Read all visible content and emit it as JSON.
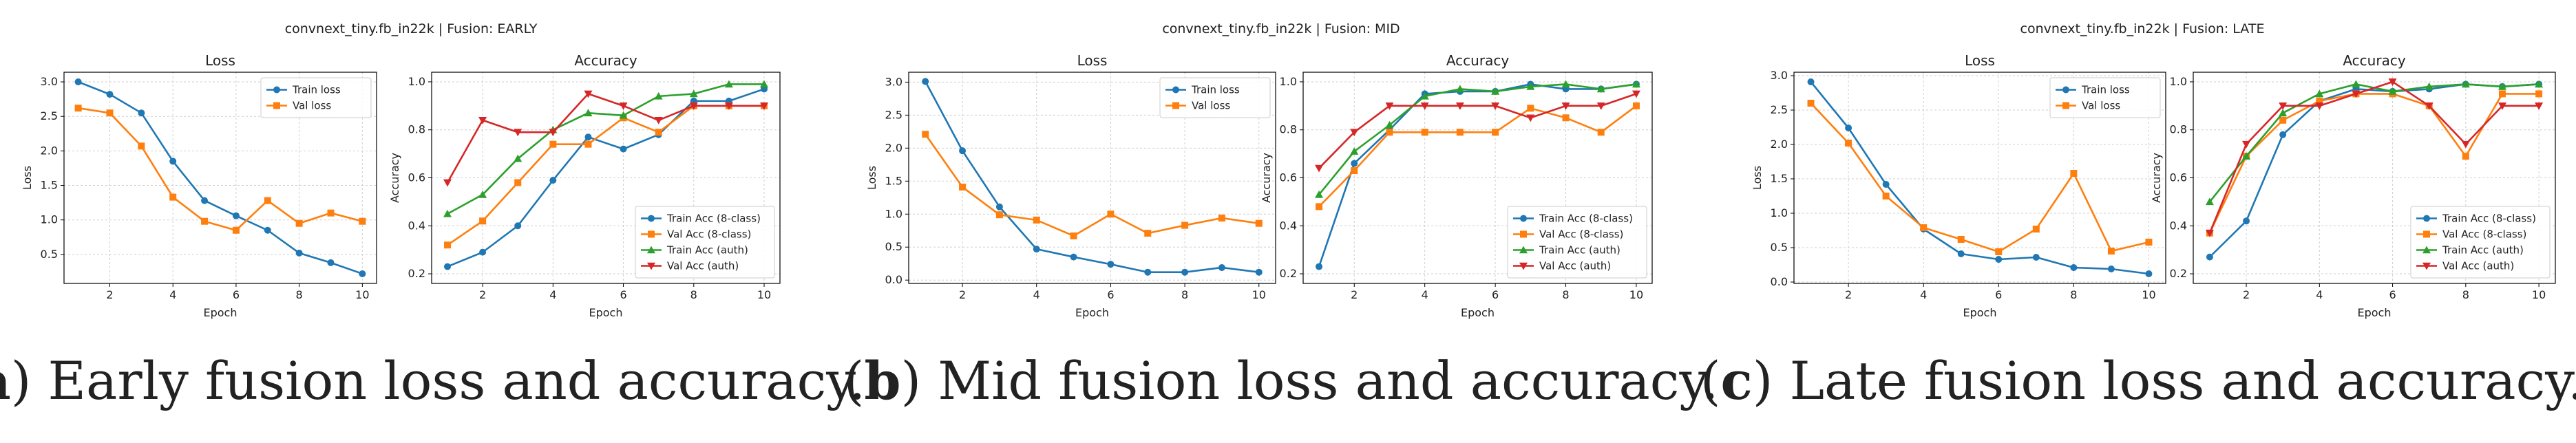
{
  "colors": {
    "blue": "#1f77b4",
    "orange": "#ff7f0e",
    "green": "#2ca02c",
    "red": "#d62728"
  },
  "panels": [
    {
      "title": "convnext_tiny.fb_in22k | Fusion: EARLY",
      "caption_label": "(a)",
      "caption_bold": "a",
      "caption_text": " Early fusion loss and accuracy."
    },
    {
      "title": "convnext_tiny.fb_in22k | Fusion: MID",
      "caption_label": "(b)",
      "caption_bold": "b",
      "caption_text": " Mid fusion loss and accuracy."
    },
    {
      "title": "convnext_tiny.fb_in22k | Fusion: LATE",
      "caption_label": "(c)",
      "caption_bold": "c",
      "caption_text": " Late fusion loss and accuracy."
    }
  ],
  "chart_data": [
    {
      "type": "line",
      "panel": 0,
      "title": "Loss",
      "xlabel": "Epoch",
      "ylabel": "Loss",
      "x": [
        1,
        2,
        3,
        4,
        5,
        6,
        7,
        8,
        9,
        10
      ],
      "xlim": [
        0.55,
        10.45
      ],
      "ylim": [
        0.08,
        3.14
      ],
      "xticks": [
        2,
        4,
        6,
        8,
        10
      ],
      "yticks": [
        0.5,
        1.0,
        1.5,
        2.0,
        2.5,
        3.0
      ],
      "ytick_fmt": 1,
      "legend": "upper right",
      "grid": true,
      "series": [
        {
          "name": "Train loss",
          "color": "blue",
          "marker": "circle",
          "values": [
            3.0,
            2.82,
            2.55,
            1.85,
            1.28,
            1.06,
            0.85,
            0.52,
            0.38,
            0.22
          ]
        },
        {
          "name": "Val loss",
          "color": "orange",
          "marker": "square",
          "values": [
            2.62,
            2.55,
            2.07,
            1.33,
            0.98,
            0.85,
            1.28,
            0.95,
            1.1,
            0.98
          ]
        }
      ]
    },
    {
      "type": "line",
      "panel": 0,
      "title": "Accuracy",
      "xlabel": "Epoch",
      "ylabel": "Accuracy",
      "x": [
        1,
        2,
        3,
        4,
        5,
        6,
        7,
        8,
        9,
        10
      ],
      "xlim": [
        0.55,
        10.45
      ],
      "ylim": [
        0.16,
        1.04
      ],
      "xticks": [
        2,
        4,
        6,
        8,
        10
      ],
      "yticks": [
        0.2,
        0.4,
        0.6,
        0.8,
        1.0
      ],
      "ytick_fmt": 1,
      "legend": "lower right",
      "grid": true,
      "series": [
        {
          "name": "Train Acc (8-class)",
          "color": "blue",
          "marker": "circle",
          "values": [
            0.23,
            0.29,
            0.4,
            0.59,
            0.77,
            0.72,
            0.78,
            0.92,
            0.92,
            0.97
          ]
        },
        {
          "name": "Val Acc (8-class)",
          "color": "orange",
          "marker": "square",
          "values": [
            0.32,
            0.42,
            0.58,
            0.74,
            0.74,
            0.85,
            0.79,
            0.9,
            0.9,
            0.9
          ]
        },
        {
          "name": "Train Acc (auth)",
          "color": "green",
          "marker": "triangle-up",
          "values": [
            0.45,
            0.53,
            0.68,
            0.8,
            0.87,
            0.86,
            0.94,
            0.95,
            0.99,
            0.99
          ]
        },
        {
          "name": "Val Acc (auth)",
          "color": "red",
          "marker": "triangle-down",
          "values": [
            0.58,
            0.84,
            0.79,
            0.79,
            0.95,
            0.9,
            0.84,
            0.9,
            0.9,
            0.9
          ]
        }
      ]
    },
    {
      "type": "line",
      "panel": 1,
      "title": "Loss",
      "xlabel": "Epoch",
      "ylabel": "Loss",
      "x": [
        1,
        2,
        3,
        4,
        5,
        6,
        7,
        8,
        9,
        10
      ],
      "xlim": [
        0.55,
        10.45
      ],
      "ylim": [
        -0.05,
        3.15
      ],
      "xticks": [
        2,
        4,
        6,
        8,
        10
      ],
      "yticks": [
        0.0,
        0.5,
        1.0,
        1.5,
        2.0,
        2.5,
        3.0
      ],
      "ytick_fmt": 1,
      "legend": "upper right",
      "grid": true,
      "series": [
        {
          "name": "Train loss",
          "color": "blue",
          "marker": "circle",
          "values": [
            3.01,
            1.96,
            1.11,
            0.47,
            0.35,
            0.24,
            0.12,
            0.12,
            0.19,
            0.12
          ]
        },
        {
          "name": "Val loss",
          "color": "orange",
          "marker": "square",
          "values": [
            2.21,
            1.41,
            0.99,
            0.91,
            0.67,
            1.0,
            0.71,
            0.83,
            0.94,
            0.86
          ]
        }
      ]
    },
    {
      "type": "line",
      "panel": 1,
      "title": "Accuracy",
      "xlabel": "Epoch",
      "ylabel": "Accuracy",
      "x": [
        1,
        2,
        3,
        4,
        5,
        6,
        7,
        8,
        9,
        10
      ],
      "xlim": [
        0.55,
        10.45
      ],
      "ylim": [
        0.16,
        1.04
      ],
      "xticks": [
        2,
        4,
        6,
        8,
        10
      ],
      "yticks": [
        0.2,
        0.4,
        0.6,
        0.8,
        1.0
      ],
      "ytick_fmt": 1,
      "legend": "lower right",
      "grid": true,
      "series": [
        {
          "name": "Train Acc (8-class)",
          "color": "blue",
          "marker": "circle",
          "values": [
            0.23,
            0.66,
            0.8,
            0.95,
            0.96,
            0.96,
            0.99,
            0.97,
            0.97,
            0.99
          ]
        },
        {
          "name": "Val Acc (8-class)",
          "color": "orange",
          "marker": "square",
          "values": [
            0.48,
            0.63,
            0.79,
            0.79,
            0.79,
            0.79,
            0.89,
            0.85,
            0.79,
            0.9
          ]
        },
        {
          "name": "Train Acc (auth)",
          "color": "green",
          "marker": "triangle-up",
          "values": [
            0.53,
            0.71,
            0.82,
            0.94,
            0.97,
            0.96,
            0.98,
            0.99,
            0.97,
            0.99
          ]
        },
        {
          "name": "Val Acc (auth)",
          "color": "red",
          "marker": "triangle-down",
          "values": [
            0.64,
            0.79,
            0.9,
            0.9,
            0.9,
            0.9,
            0.85,
            0.9,
            0.9,
            0.95
          ]
        }
      ]
    },
    {
      "type": "line",
      "panel": 2,
      "title": "Loss",
      "xlabel": "Epoch",
      "ylabel": "Loss",
      "x": [
        1,
        2,
        3,
        4,
        5,
        6,
        7,
        8,
        9,
        10
      ],
      "xlim": [
        0.55,
        10.45
      ],
      "ylim": [
        -0.02,
        3.05
      ],
      "xticks": [
        2,
        4,
        6,
        8,
        10
      ],
      "yticks": [
        0.0,
        0.5,
        1.0,
        1.5,
        2.0,
        2.5,
        3.0
      ],
      "ytick_fmt": 1,
      "legend": "upper right",
      "grid": true,
      "series": [
        {
          "name": "Train loss",
          "color": "blue",
          "marker": "circle",
          "values": [
            2.91,
            2.24,
            1.42,
            0.77,
            0.41,
            0.33,
            0.36,
            0.21,
            0.19,
            0.12
          ]
        },
        {
          "name": "Val loss",
          "color": "orange",
          "marker": "square",
          "values": [
            2.6,
            2.02,
            1.25,
            0.79,
            0.62,
            0.44,
            0.77,
            1.58,
            0.45,
            0.58
          ]
        }
      ]
    },
    {
      "type": "line",
      "panel": 2,
      "title": "Accuracy",
      "xlabel": "Epoch",
      "ylabel": "Accuracy",
      "x": [
        1,
        2,
        3,
        4,
        5,
        6,
        7,
        8,
        9,
        10
      ],
      "xlim": [
        0.55,
        10.45
      ],
      "ylim": [
        0.16,
        1.04
      ],
      "xticks": [
        2,
        4,
        6,
        8,
        10
      ],
      "yticks": [
        0.2,
        0.4,
        0.6,
        0.8,
        1.0
      ],
      "ytick_fmt": 1,
      "legend": "lower right",
      "grid": true,
      "series": [
        {
          "name": "Train Acc (8-class)",
          "color": "blue",
          "marker": "circle",
          "values": [
            0.27,
            0.42,
            0.78,
            0.92,
            0.97,
            0.96,
            0.97,
            0.99,
            0.98,
            0.99
          ]
        },
        {
          "name": "Val Acc (8-class)",
          "color": "orange",
          "marker": "square",
          "values": [
            0.37,
            0.69,
            0.84,
            0.92,
            0.95,
            0.95,
            0.9,
            0.69,
            0.95,
            0.95
          ]
        },
        {
          "name": "Train Acc (auth)",
          "color": "green",
          "marker": "triangle-up",
          "values": [
            0.5,
            0.69,
            0.87,
            0.95,
            0.99,
            0.96,
            0.98,
            0.99,
            0.98,
            0.99
          ]
        },
        {
          "name": "Val Acc (auth)",
          "color": "red",
          "marker": "triangle-down",
          "values": [
            0.37,
            0.74,
            0.9,
            0.9,
            0.95,
            1.0,
            0.9,
            0.74,
            0.9,
            0.9
          ]
        }
      ]
    }
  ]
}
